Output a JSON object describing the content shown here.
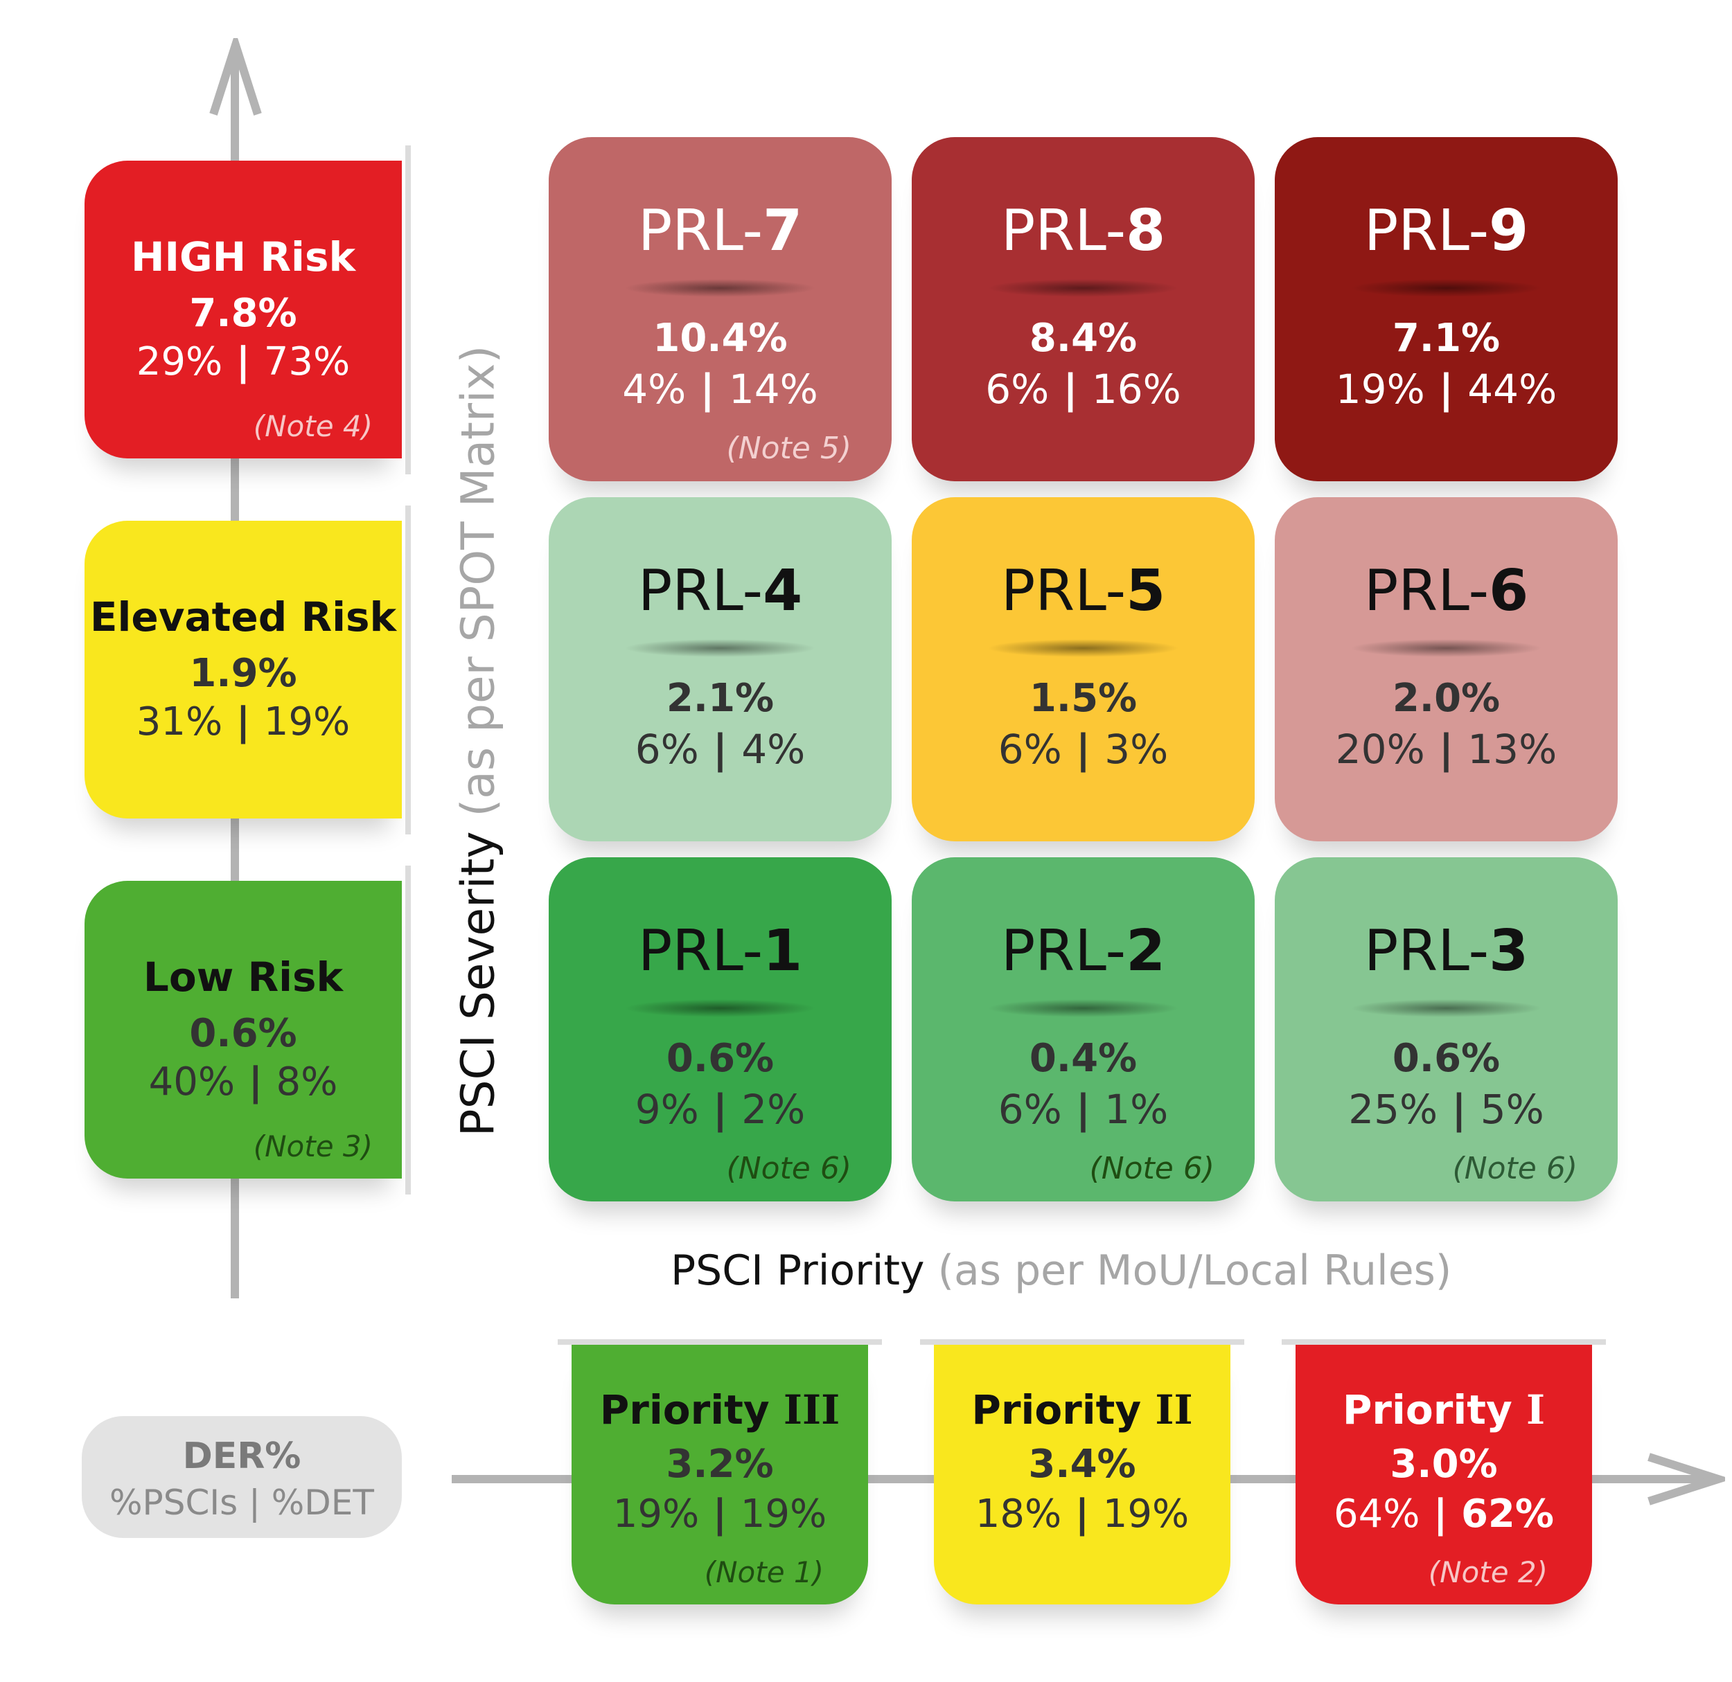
{
  "risk_levels": [
    {
      "label": "HIGH Risk",
      "der": "7.8%",
      "pscis": "29%",
      "det": "73%",
      "note": "(Note 4)",
      "color": "#e31e24"
    },
    {
      "label": "Elevated Risk",
      "der": "1.9%",
      "pscis": "31%",
      "det": "19%",
      "note": "",
      "color": "#f9e71e"
    },
    {
      "label": "Low Risk",
      "der": "0.6%",
      "pscis": "40%",
      "det": "8%",
      "note": "(Note 3)",
      "color": "#4fae32"
    }
  ],
  "prl": [
    {
      "prefix": "PRL-",
      "num": "7",
      "der": "10.4%",
      "pscis": "4%",
      "det": "14%",
      "note": "(Note 5)",
      "color": "#bf6767"
    },
    {
      "prefix": "PRL-",
      "num": "8",
      "der": "8.4%",
      "pscis": "6%",
      "det": "16%",
      "note": "",
      "color": "#a82f32"
    },
    {
      "prefix": "PRL-",
      "num": "9",
      "der": "7.1%",
      "pscis": "19%",
      "det": "44%",
      "note": "",
      "color": "#8f1814"
    },
    {
      "prefix": "PRL-",
      "num": "4",
      "der": "2.1%",
      "pscis": "6%",
      "det": "4%",
      "note": "",
      "color": "#acd6b4"
    },
    {
      "prefix": "PRL-",
      "num": "5",
      "der": "1.5%",
      "pscis": "6%",
      "det": "3%",
      "note": "",
      "color": "#fcc736"
    },
    {
      "prefix": "PRL-",
      "num": "6",
      "der": "2.0%",
      "pscis": "20%",
      "det": "13%",
      "note": "",
      "color": "#d69996"
    },
    {
      "prefix": "PRL-",
      "num": "1",
      "der": "0.6%",
      "pscis": "9%",
      "det": "2%",
      "note": "(Note 6)",
      "color": "#37a74a"
    },
    {
      "prefix": "PRL-",
      "num": "2",
      "der": "0.4%",
      "pscis": "6%",
      "det": "1%",
      "note": "(Note 6)",
      "color": "#5bb76d"
    },
    {
      "prefix": "PRL-",
      "num": "3",
      "der": "0.6%",
      "pscis": "25%",
      "det": "5%",
      "note": "(Note 6)",
      "color": "#86c692"
    }
  ],
  "priorities": [
    {
      "label": "Priority",
      "numeral": "III",
      "der": "3.2%",
      "pscis": "19%",
      "det": "19%",
      "note": "(Note 1)",
      "color": "#4fae32"
    },
    {
      "label": "Priority",
      "numeral": "II",
      "der": "3.4%",
      "pscis": "18%",
      "det": "19%",
      "note": "",
      "color": "#f9e71e"
    },
    {
      "label": "Priority",
      "numeral": "I",
      "der": "3.0%",
      "pscis": "64%",
      "det": "62%",
      "note": "(Note 2)",
      "color": "#e31e24"
    }
  ],
  "y_axis": {
    "main": "PSCI Severity",
    "sub": "(as per SPOT Matrix)"
  },
  "x_axis": {
    "main": "PSCI Priority",
    "sub": "(as per MoU/Local Rules)"
  },
  "legend": {
    "line1": "DER%",
    "line2": "%PSCIs | %DET"
  },
  "separator": " | "
}
